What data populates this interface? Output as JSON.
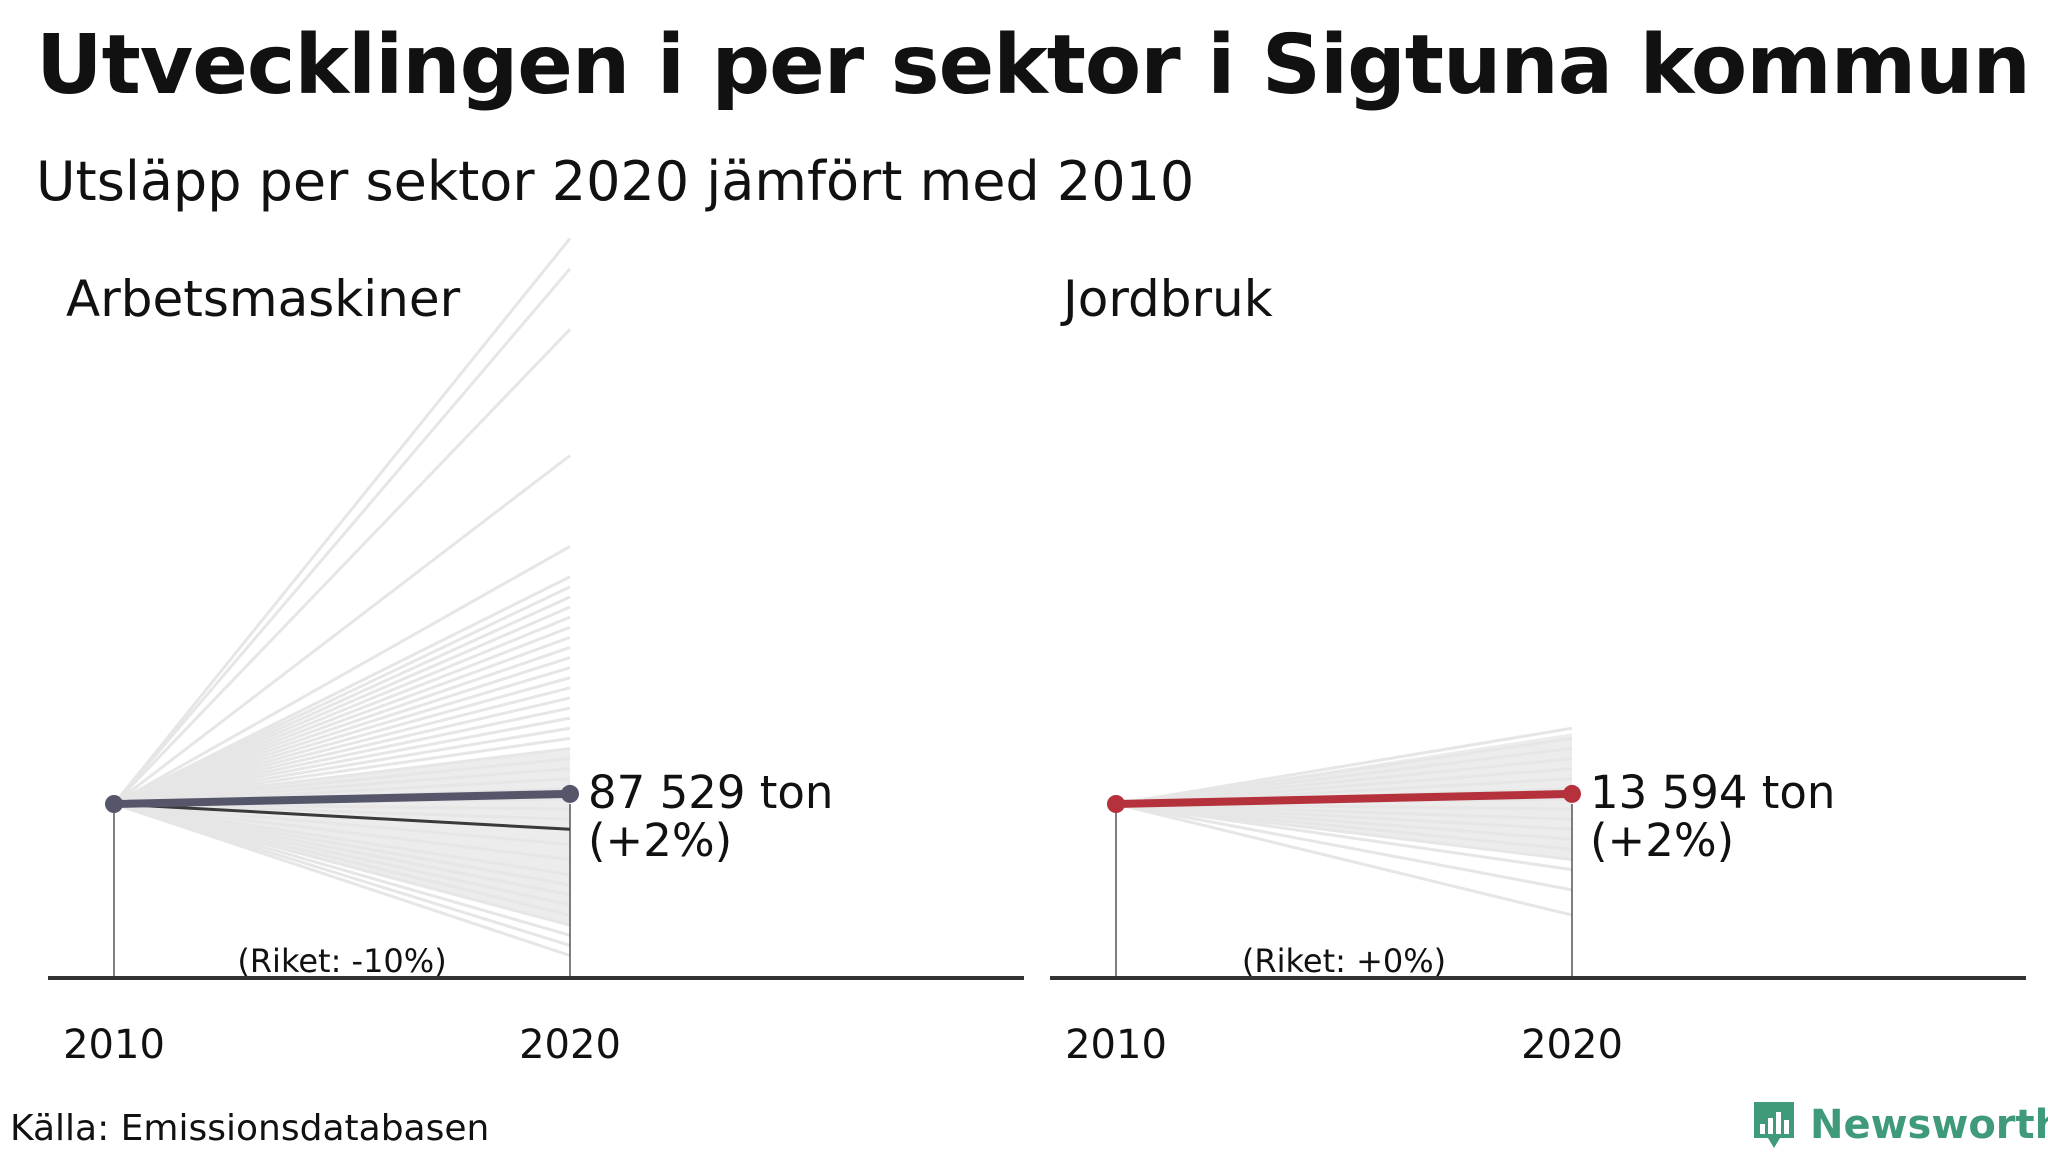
{
  "title": "Utvecklingen i per sektor i Sigtuna kommun",
  "subtitle": "Utsläpp per sektor 2020 jämfört med 2010",
  "source": "Källa: Emissionsdatabasen",
  "brand": {
    "name": "Newsworthy",
    "color": "#3f9a7a",
    "icon": "bar-chart-speech-icon"
  },
  "colors": {
    "background_lines": "#e6e6e6",
    "band": "#ececec",
    "axis": "#333333"
  },
  "chart_data": [
    {
      "type": "line",
      "title": "Arbetsmaskiner",
      "x": [
        "2010",
        "2020"
      ],
      "value_label": "87 529 ton",
      "change_label": "(+2%)",
      "national_label": "(Riket: -10%)",
      "highlight_color": "#55566a",
      "secondary_line_pct": -5,
      "series": [
        {
          "values": [
            100,
            102
          ]
        }
      ],
      "other_municipalities_pct_2020": [
        112,
        106,
        94,
        69,
        51,
        45,
        43,
        41,
        39,
        37,
        35,
        33,
        31,
        29,
        27,
        25,
        23,
        21,
        19,
        17,
        15,
        13,
        11,
        9,
        7,
        5,
        3,
        1,
        -1,
        -3,
        -5,
        -8,
        -11,
        -14,
        -16,
        -18,
        -20,
        -22,
        -24,
        -26,
        -28,
        -30
      ],
      "band_pct": [
        -24,
        11
      ]
    },
    {
      "type": "line",
      "title": "Jordbruk",
      "x": [
        "2010",
        "2020"
      ],
      "value_label": "13 594 ton",
      "change_label": "(+2%)",
      "national_label": "(Riket: +0%)",
      "highlight_color": "#b5323d",
      "series": [
        {
          "values": [
            100,
            102
          ]
        }
      ],
      "other_municipalities_pct_2020": [
        15,
        13,
        11,
        9,
        7,
        5,
        3,
        1,
        -1,
        -3,
        -5,
        -7,
        -9,
        -11,
        -13,
        -17,
        -22
      ],
      "band_pct": [
        -11,
        14
      ]
    }
  ]
}
